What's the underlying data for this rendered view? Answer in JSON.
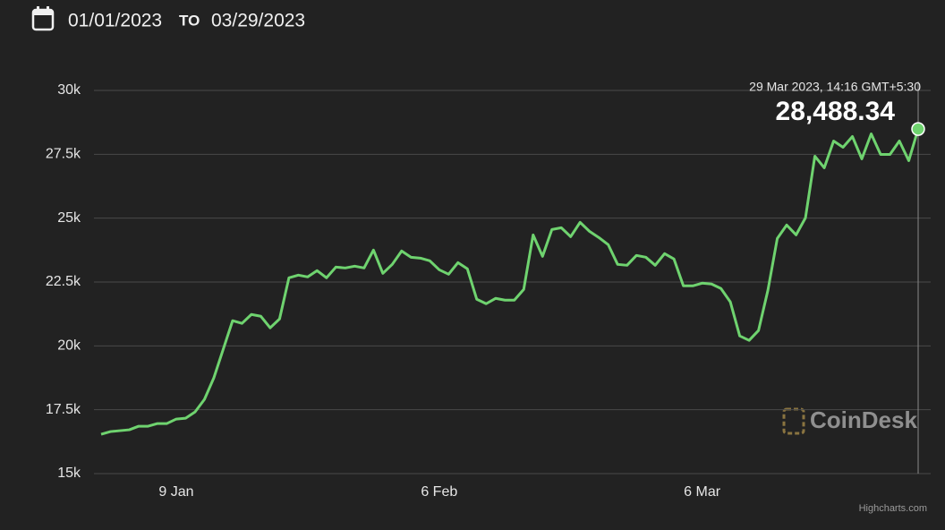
{
  "header": {
    "start_date": "01/01/2023",
    "separator": "TO",
    "end_date": "03/29/2023"
  },
  "watermark": "CoinDesk",
  "credits": "Highcharts.com",
  "chart_data": {
    "type": "line",
    "categories": [
      null,
      null,
      null,
      null,
      null,
      null,
      null,
      null,
      "9 Jan",
      null,
      null,
      null,
      null,
      null,
      null,
      null,
      null,
      null,
      null,
      null,
      null,
      null,
      null,
      null,
      null,
      null,
      null,
      null,
      null,
      null,
      null,
      null,
      null,
      null,
      null,
      null,
      "6 Feb",
      null,
      null,
      null,
      null,
      null,
      null,
      null,
      null,
      null,
      null,
      null,
      null,
      null,
      null,
      null,
      null,
      null,
      null,
      null,
      null,
      null,
      null,
      null,
      null,
      null,
      null,
      null,
      "6 Mar",
      null,
      null,
      null,
      null,
      null,
      null,
      null,
      null,
      null,
      null,
      null,
      null,
      null,
      null,
      null,
      null,
      null,
      null,
      null,
      null,
      null,
      null,
      null
    ],
    "series": [
      {
        "color": "#6fd36f",
        "values": [
          16540,
          16645,
          16680,
          16715,
          16855,
          16855,
          16960,
          16960,
          17135,
          17170,
          17415,
          17905,
          18745,
          19865,
          20985,
          20880,
          21230,
          21160,
          20705,
          21055,
          22665,
          22770,
          22700,
          22945,
          22665,
          23085,
          23050,
          23120,
          23050,
          23750,
          22840,
          23190,
          23715,
          23470,
          23435,
          23330,
          22980,
          22805,
          23260,
          23015,
          21825,
          21650,
          21860,
          21790,
          21790,
          22210,
          24345,
          23505,
          24555,
          24625,
          24275,
          24835,
          24485,
          24240,
          23960,
          23190,
          23155,
          23540,
          23470,
          23155,
          23610,
          23400,
          22350,
          22350,
          22455,
          22420,
          22245,
          21720,
          20390,
          20215,
          20600,
          22175,
          24205,
          24730,
          24345,
          25010,
          27425,
          26970,
          28020,
          27775,
          28195,
          27320,
          28300,
          27495,
          27495,
          28020,
          27250,
          28488.34
        ],
        "value_labels": [
          null,
          null,
          null,
          null,
          null,
          null,
          null,
          null,
          null,
          null,
          null,
          null,
          null,
          null,
          null,
          null,
          null,
          null,
          null,
          null,
          null,
          null,
          null,
          null,
          null,
          null,
          null,
          null,
          null,
          null,
          null,
          null,
          null,
          null,
          null,
          null,
          null,
          null,
          null,
          null,
          null,
          null,
          null,
          null,
          null,
          null,
          null,
          null,
          null,
          null,
          null,
          null,
          null,
          null,
          null,
          null,
          null,
          null,
          null,
          null,
          null,
          null,
          null,
          null,
          null,
          null,
          null,
          null,
          null,
          null,
          null,
          null,
          null,
          null,
          null,
          null,
          null,
          null,
          null,
          null,
          null,
          null,
          null,
          null,
          null,
          null,
          null,
          "28,488.34"
        ]
      }
    ],
    "annotation": "29 Mar 2023, 14:16 GMT+5:30",
    "ylim": [
      15000,
      30000
    ],
    "yticks": [
      {
        "value": 15000,
        "label": "15k"
      },
      {
        "value": 17500,
        "label": "17.5k"
      },
      {
        "value": 20000,
        "label": "20k"
      },
      {
        "value": 22500,
        "label": "22.5k"
      },
      {
        "value": 25000,
        "label": "25k"
      },
      {
        "value": 27500,
        "label": "27.5k"
      },
      {
        "value": 30000,
        "label": "30k"
      }
    ],
    "grid": true
  }
}
